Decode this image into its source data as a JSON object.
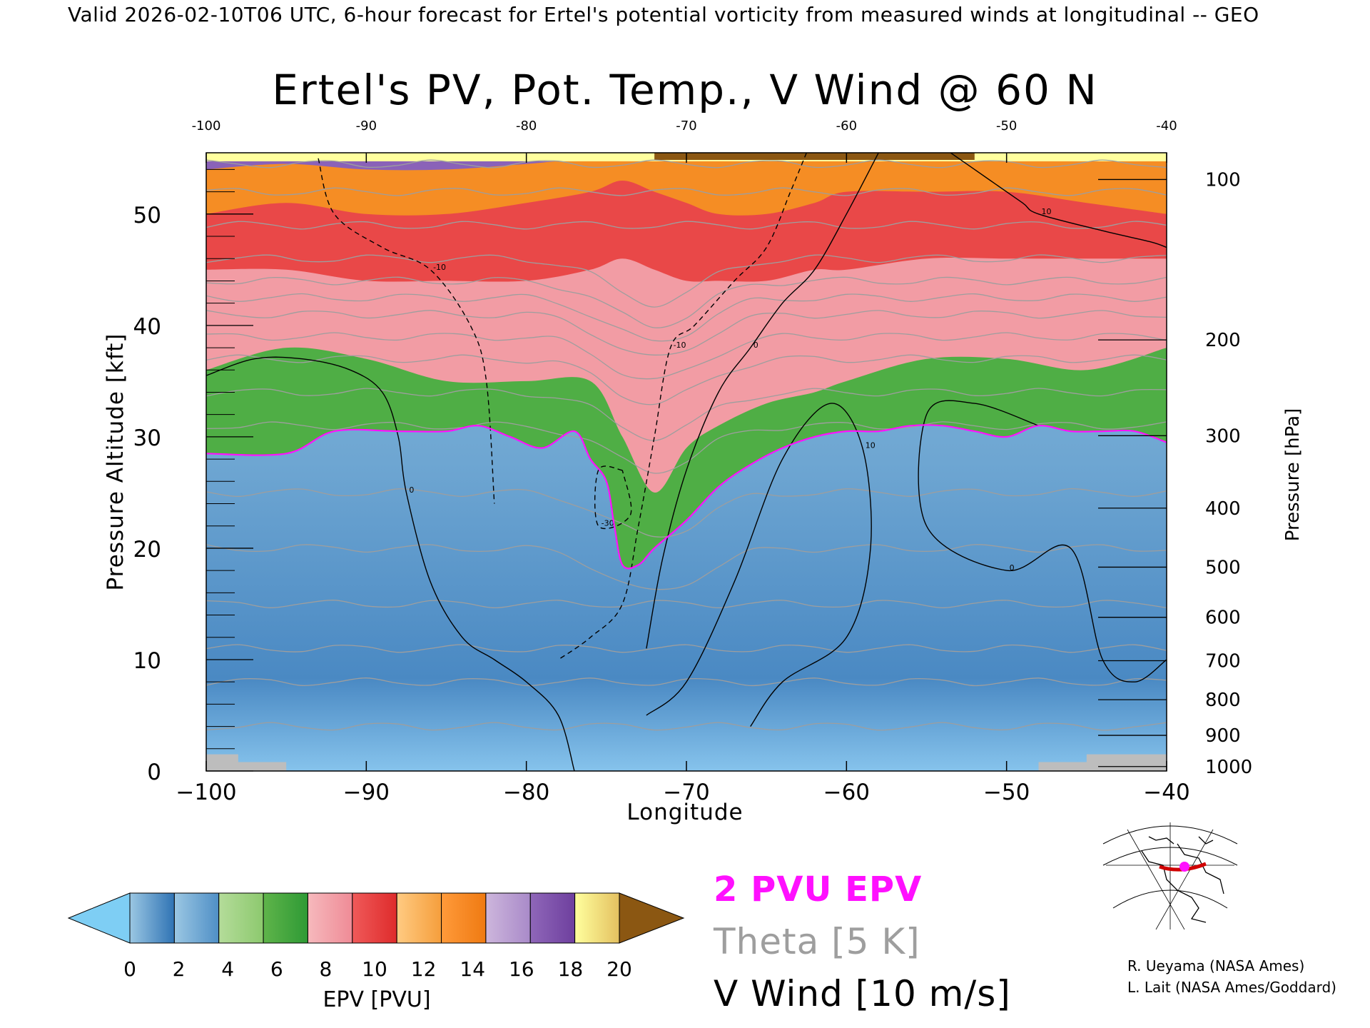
{
  "header": "Valid 2026-02-10T06 UTC, 6-hour forecast for Ertel's potential vorticity from measured winds at longitudinal -- GEO",
  "chart_data": {
    "type": "heatmap",
    "title": "Ertel's PV, Pot. Temp., V Wind @ 60 N",
    "xlabel": "Longitude",
    "ylabel_left": "Pressure Altitude [kft]",
    "ylabel_right": "Pressure [hPa]",
    "xlim": [
      -100,
      -40
    ],
    "ylim": [
      0,
      55.5
    ],
    "x_ticks_bottom": [
      "−100",
      "−90",
      "−80",
      "−70",
      "−60",
      "−50",
      "−40"
    ],
    "x_ticks_top": [
      "-100",
      "-90",
      "-80",
      "-70",
      "-60",
      "-50",
      "-40"
    ],
    "y_ticks_left": [
      "0",
      "10",
      "20",
      "30",
      "40",
      "50"
    ],
    "y_ticks_right": [
      {
        "label": "100",
        "kft": 53.1
      },
      {
        "label": "200",
        "kft": 38.7
      },
      {
        "label": "300",
        "kft": 30.1
      },
      {
        "label": "400",
        "kft": 23.6
      },
      {
        "label": "500",
        "kft": 18.3
      },
      {
        "label": "600",
        "kft": 13.8
      },
      {
        "label": "700",
        "kft": 9.9
      },
      {
        "label": "800",
        "kft": 6.4
      },
      {
        "label": "900",
        "kft": 3.2
      },
      {
        "label": "1000",
        "kft": 0.4
      }
    ],
    "tropopause_2pvu_kft": {
      "lon": [
        -100,
        -95,
        -92,
        -88,
        -85,
        -83,
        -81,
        -79,
        -77,
        -76,
        -75,
        -74.5,
        -74,
        -73,
        -72,
        -70,
        -68,
        -66,
        -64,
        -62,
        -60,
        -58,
        -56,
        -54,
        -52,
        -50,
        -48,
        -46,
        -44,
        -42,
        -40
      ],
      "alt": [
        28.5,
        28.5,
        30.5,
        30.5,
        30.5,
        31,
        30,
        29,
        30.5,
        28,
        26,
        22,
        18.5,
        18.5,
        20,
        22.5,
        25.5,
        27.5,
        29,
        30,
        30.5,
        30.5,
        31,
        31,
        30.5,
        30,
        31,
        30.5,
        30.5,
        30.5,
        29.5
      ]
    },
    "pv_layers_kft": {
      "lon": [
        -100,
        -95,
        -90,
        -85,
        -80,
        -76,
        -74,
        -72,
        -70,
        -68,
        -65,
        -62,
        -60,
        -55,
        -50,
        -45,
        -40
      ],
      "green_top": [
        36,
        38,
        37,
        35,
        35,
        35,
        30,
        25,
        29,
        31,
        33,
        34,
        35,
        37,
        37,
        36,
        38
      ],
      "red_top": [
        45,
        45,
        44,
        44,
        44,
        45,
        46,
        45,
        44,
        44,
        44,
        45,
        45,
        46,
        46,
        46,
        46
      ],
      "orange_top": [
        50,
        51,
        50,
        50,
        51,
        52,
        53,
        52,
        51,
        50,
        50,
        51,
        52,
        52,
        52,
        51,
        50
      ],
      "purple_top": [
        54,
        54.5,
        54,
        54,
        54.5,
        55,
        55,
        55,
        55,
        55,
        55,
        55,
        55,
        55,
        55,
        55,
        55
      ]
    },
    "v_wind_contours": [
      {
        "value": "0",
        "style": "solid",
        "lon": [
          -100,
          -97,
          -94,
          -91,
          -89,
          -88,
          -87.5,
          -86,
          -84,
          -82,
          -80,
          -78,
          -77
        ],
        "alt": [
          35.5,
          37,
          37,
          36,
          34,
          30,
          25,
          17,
          12,
          10,
          8,
          5,
          0
        ]
      },
      {
        "value": "0",
        "style": "solid",
        "lon": [
          -72.5,
          -71.5,
          -70,
          -68,
          -66,
          -64,
          -62,
          -60,
          -58
        ],
        "alt": [
          11,
          19,
          27,
          34,
          38,
          42,
          45,
          50,
          55.5
        ]
      },
      {
        "value": "10",
        "style": "solid",
        "lon": [
          -72.5,
          -70,
          -67,
          -64,
          -61,
          -59,
          -58.5,
          -60,
          -64,
          -66
        ],
        "alt": [
          5,
          8,
          17,
          28,
          33,
          29,
          20,
          12,
          8,
          4
        ]
      },
      {
        "value": "0",
        "style": "solid",
        "lon": [
          -48,
          -52,
          -55,
          -55,
          -50,
          -46,
          -44,
          -42,
          -40
        ],
        "alt": [
          31,
          33,
          32,
          22,
          18,
          20,
          10,
          8,
          10
        ]
      },
      {
        "value": "-10",
        "style": "dashed",
        "lon": [
          -93,
          -92,
          -89,
          -86,
          -83.5,
          -82.5,
          -82
        ],
        "alt": [
          55,
          50,
          47,
          45,
          40,
          35,
          24
        ]
      },
      {
        "value": "-10",
        "style": "dashed",
        "lon": [
          -62.5,
          -63.5,
          -65,
          -67,
          -69.5,
          -71,
          -72,
          -73,
          -74,
          -76,
          -78
        ],
        "alt": [
          55.5,
          52,
          47,
          44,
          40,
          38,
          30,
          22,
          15,
          12,
          10
        ]
      },
      {
        "value": "-30",
        "style": "dashed",
        "lon": [
          -74,
          -75.5,
          -75.5,
          -73.5,
          -74
        ],
        "alt": [
          27,
          27,
          22,
          23,
          27
        ]
      },
      {
        "value": "10",
        "style": "solid",
        "lon": [
          -53.5,
          -51,
          -49,
          -48,
          -44,
          -41,
          -40
        ],
        "alt": [
          55.5,
          53,
          51,
          50,
          48.5,
          47.5,
          47
        ]
      }
    ],
    "theta_contours_K": {
      "values": [
        260,
        270,
        280,
        290,
        300,
        310,
        320,
        330,
        340,
        350,
        360,
        370,
        380,
        390,
        400,
        410,
        420
      ],
      "alt_kft_at_edges": [
        4,
        8,
        11,
        15,
        20,
        25,
        31,
        34,
        37,
        39,
        41,
        42.5,
        44,
        46,
        49,
        52,
        54.5
      ]
    },
    "colorbar": {
      "label": "EPV [PVU]",
      "ticks": [
        "0",
        "2",
        "4",
        "6",
        "8",
        "10",
        "12",
        "14",
        "16",
        "18",
        "20"
      ],
      "colors": [
        [
          "#9bc7e3",
          "#2f73b4"
        ],
        [
          "#9bc7e3",
          "#4f8fc6"
        ],
        [
          "#b4dc9a",
          "#8dc96e"
        ],
        [
          "#5fb44a",
          "#2e9a35"
        ],
        [
          "#f6b9bd",
          "#ef8b96"
        ],
        [
          "#f05a5a",
          "#de2b2b"
        ],
        [
          "#ffcb82",
          "#f59e3c"
        ],
        [
          "#ff9a3a",
          "#ef7a12"
        ],
        [
          "#cdb6dc",
          "#a98ac9"
        ],
        [
          "#8f67b9",
          "#6e3f9e"
        ],
        [
          "#ffff9e",
          "#e4c060"
        ]
      ],
      "under_color": "#7ecef4",
      "over_color": "#8b5712"
    }
  },
  "legend": {
    "epv": "2 PVU EPV",
    "theta": "Theta [5 K]",
    "vwind": "V Wind [10 m/s]"
  },
  "credits": [
    "R. Ueyama (NASA Ames)",
    "L. Lait (NASA Ames/Goddard)"
  ],
  "colors": {
    "tropopause": "#ff10ff",
    "theta": "#9e9e9e",
    "v_wind": "#000000",
    "terrain": "#bdbdbd"
  }
}
